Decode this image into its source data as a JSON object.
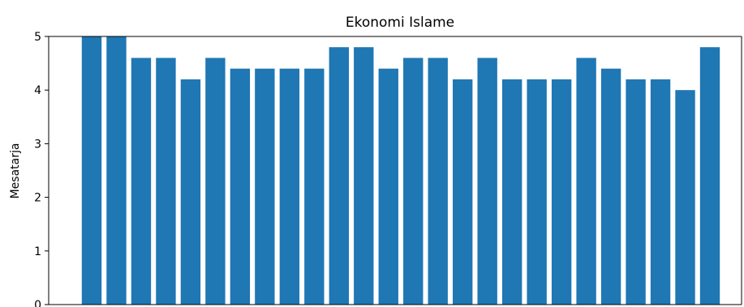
{
  "chart_data": {
    "type": "bar",
    "title": "Ekonomi Islame",
    "xlabel": "",
    "ylabel": "Mesatarja",
    "ylim": [
      0,
      5
    ],
    "yticks": [
      0,
      1,
      2,
      3,
      4,
      5
    ],
    "grid": false,
    "color": "#1f77b4",
    "values": [
      5.0,
      5.0,
      4.6,
      4.6,
      4.2,
      4.6,
      4.4,
      4.4,
      4.4,
      4.4,
      4.8,
      4.8,
      4.4,
      4.6,
      4.6,
      4.2,
      4.6,
      4.2,
      4.2,
      4.2,
      4.6,
      4.4,
      4.2,
      4.2,
      4.0,
      4.8
    ]
  }
}
